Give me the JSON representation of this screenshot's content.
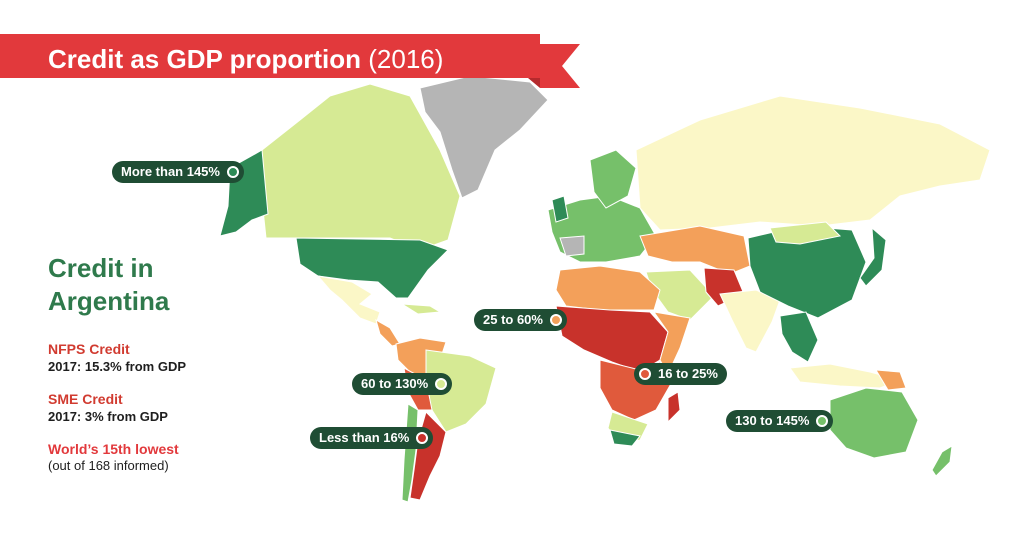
{
  "header": {
    "title": "Credit as GDP proportion",
    "year": "(2016)",
    "banner_color": "#e2393c"
  },
  "sidebar": {
    "title": "Credit in Argentina",
    "nfps_label": "NFPS Credit",
    "nfps_value": "2017: 15.3% from GDP",
    "sme_label": "SME Credit",
    "sme_value": "2017: 3% from GDP",
    "rank_label": "World’s 15th lowest",
    "rank_sub": "(out of 168 informed)"
  },
  "legend": [
    {
      "label": "More than 145%",
      "color": "#2e8b57"
    },
    {
      "label": "130 to 145%",
      "color": "#76c06a"
    },
    {
      "label": "60 to 130%",
      "color": "#d6ea94"
    },
    {
      "label": "25 to 60%",
      "color": "#f3a05a"
    },
    {
      "label": "16 to 25%",
      "color": "#e05a3c"
    },
    {
      "label": "Less than 16%",
      "color": "#c8322b"
    }
  ],
  "colors": {
    "no_data": "#b5b5b5",
    "pale": "#fbf7c7",
    "badge_bg": "#1f4d34",
    "accent_green": "#2f7a4c",
    "accent_red": "#d13b30"
  }
}
